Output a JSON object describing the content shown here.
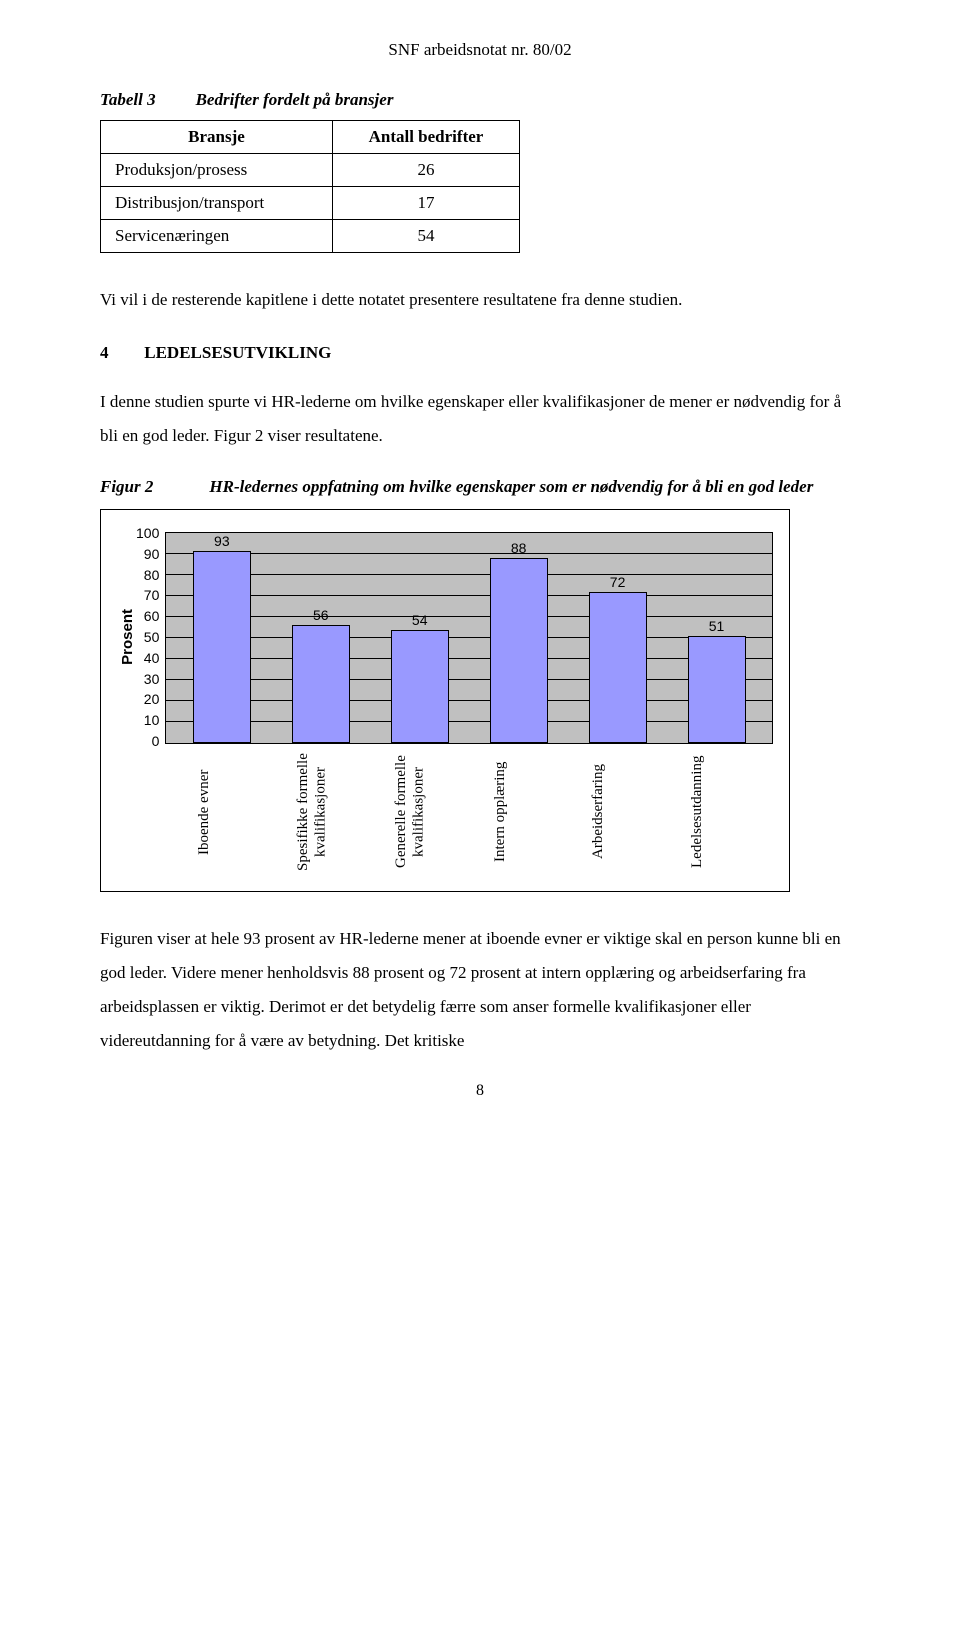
{
  "doc_header": "SNF arbeidsnotat nr. 80/02",
  "table3": {
    "label": "Tabell 3",
    "title": "Bedrifter fordelt på bransjer",
    "columns": [
      "Bransje",
      "Antall bedrifter"
    ],
    "rows": [
      [
        "Produksjon/prosess",
        "26"
      ],
      [
        "Distribusjon/transport",
        "17"
      ],
      [
        "Servicenæringen",
        "54"
      ]
    ]
  },
  "para1": "Vi vil i de resterende kapitlene i dette notatet presentere resultatene fra denne studien.",
  "section": {
    "num": "4",
    "title": "LEDELSESUTVIKLING"
  },
  "para2": "I denne studien spurte vi HR-lederne om hvilke egenskaper eller kvalifikasjoner de mener er nødvendig for å bli en god leder. Figur 2 viser resultatene.",
  "figure2": {
    "label": "Figur 2",
    "title": "HR-ledernes oppfatning om hvilke egenskaper som er nødvendig for å bli en god leder"
  },
  "chart": {
    "type": "bar",
    "ylabel": "Prosent",
    "ylim": [
      0,
      100
    ],
    "ytick_step": 10,
    "categories": [
      "Iboende evner",
      "Spesifikke formelle kvalifikasjoner",
      "Generelle formelle kvalifikasjoner",
      "Intern opplæring",
      "Arbeidserfaring",
      "Ledelsesutdanning"
    ],
    "values": [
      93,
      56,
      54,
      88,
      72,
      51
    ],
    "bar_color": "#9999ff",
    "bar_border": "#000000",
    "plot_bg": "#c0c0c0",
    "grid_color": "#000000",
    "frame_border": "#000000",
    "label_fontsize": 14,
    "value_fontsize": 14,
    "ylabel_fontsize": 15
  },
  "para3": "Figuren viser at hele 93 prosent av HR-lederne mener at iboende evner er viktige skal en person kunne bli en god leder. Videre mener henholdsvis 88 prosent  og 72 prosent at intern opplæring og arbeidserfaring fra arbeidsplassen er viktig. Derimot er det betydelig færre som anser formelle kvalifikasjoner eller videreutdanning for å være av betydning. Det kritiske",
  "page_number": "8"
}
